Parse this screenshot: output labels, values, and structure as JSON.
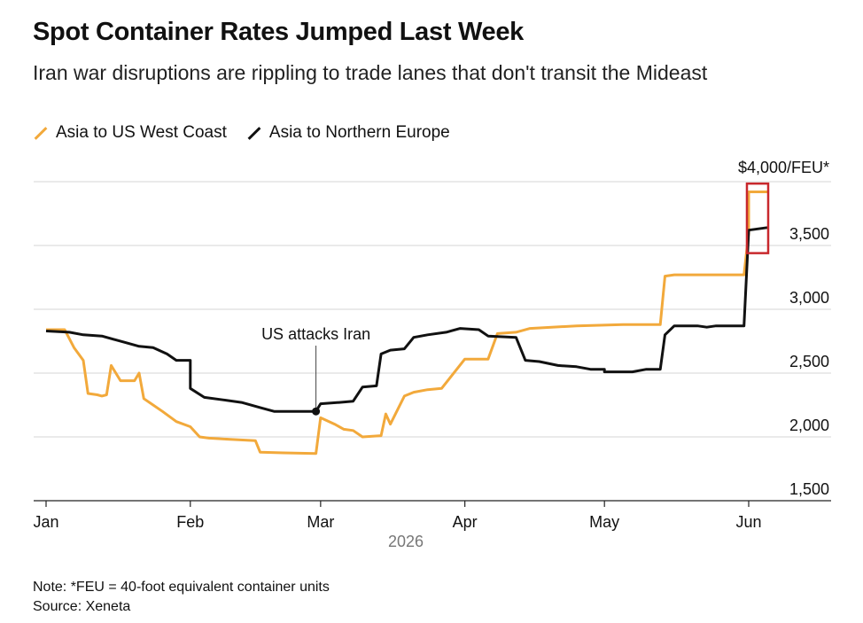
{
  "colors": {
    "asia_us_west_coast": "#f2a93b",
    "asia_northern_europe": "#111111",
    "highlight_box": "#c8282d",
    "grid": "#d6d6d6"
  },
  "header": {
    "title": "Spot Container Rates Jumped Last Week",
    "subtitle": "Iran war disruptions are rippling to trade lanes that don't transit the Mideast"
  },
  "footer": {
    "note": "Note: *FEU = 40-foot equivalent container units",
    "source": "Source: Xeneta"
  },
  "chart_data": {
    "type": "line",
    "xlabel": "2026",
    "ylabel": "",
    "x_ticks": [
      "Jan",
      "Feb",
      "Mar",
      "Apr",
      "May",
      "Jun"
    ],
    "x_tick_dates": [
      "2026-01-01",
      "2026-02-01",
      "2026-03-01",
      "2026-04-01",
      "2026-05-01",
      "2026-06-01"
    ],
    "xlim": [
      "2026-01-01",
      "2026-06-05"
    ],
    "ylim": [
      1500,
      4000
    ],
    "y_ticks": [
      1500,
      2000,
      2500,
      3000,
      3500,
      4000
    ],
    "y_tick_labels": [
      "1,500",
      "2,000",
      "2,500",
      "3,000",
      "3,500",
      "$4,000/FEU*"
    ],
    "grid": true,
    "legend_position": "top-left",
    "annotation": {
      "text": "US attacks Iran",
      "date": "2026-02-28",
      "value": 2200
    },
    "highlight": "latest values",
    "series": [
      {
        "name": "Asia to US West Coast",
        "points": [
          [
            "2026-01-01",
            2840
          ],
          [
            "2026-01-05",
            2840
          ],
          [
            "2026-01-07",
            2700
          ],
          [
            "2026-01-09",
            2600
          ],
          [
            "2026-01-10",
            2340
          ],
          [
            "2026-01-12",
            2330
          ],
          [
            "2026-01-13",
            2320
          ],
          [
            "2026-01-14",
            2330
          ],
          [
            "2026-01-15",
            2560
          ],
          [
            "2026-01-17",
            2440
          ],
          [
            "2026-01-20",
            2440
          ],
          [
            "2026-01-21",
            2500
          ],
          [
            "2026-01-22",
            2300
          ],
          [
            "2026-01-24",
            2250
          ],
          [
            "2026-01-26",
            2200
          ],
          [
            "2026-01-29",
            2120
          ],
          [
            "2026-02-01",
            2080
          ],
          [
            "2026-02-03",
            2000
          ],
          [
            "2026-02-05",
            1990
          ],
          [
            "2026-02-10",
            1980
          ],
          [
            "2026-02-15",
            1970
          ],
          [
            "2026-02-16",
            1880
          ],
          [
            "2026-02-21",
            1875
          ],
          [
            "2026-02-28",
            1870
          ],
          [
            "2026-03-01",
            2150
          ],
          [
            "2026-03-04",
            2100
          ],
          [
            "2026-03-06",
            2060
          ],
          [
            "2026-03-08",
            2050
          ],
          [
            "2026-03-10",
            2000
          ],
          [
            "2026-03-14",
            2010
          ],
          [
            "2026-03-15",
            2180
          ],
          [
            "2026-03-16",
            2100
          ],
          [
            "2026-03-19",
            2320
          ],
          [
            "2026-03-21",
            2350
          ],
          [
            "2026-03-24",
            2370
          ],
          [
            "2026-03-27",
            2380
          ],
          [
            "2026-04-01",
            2610
          ],
          [
            "2026-04-06",
            2610
          ],
          [
            "2026-04-08",
            2810
          ],
          [
            "2026-04-12",
            2820
          ],
          [
            "2026-04-15",
            2850
          ],
          [
            "2026-04-25",
            2870
          ],
          [
            "2026-05-05",
            2880
          ],
          [
            "2026-05-13",
            2880
          ],
          [
            "2026-05-14",
            3260
          ],
          [
            "2026-05-16",
            3270
          ],
          [
            "2026-05-31",
            3270
          ],
          [
            "2026-06-01",
            3600
          ],
          [
            "2026-06-01",
            3920
          ],
          [
            "2026-06-05",
            3920
          ]
        ]
      },
      {
        "name": "Asia to Northern Europe",
        "points": [
          [
            "2026-01-01",
            2830
          ],
          [
            "2026-01-06",
            2820
          ],
          [
            "2026-01-09",
            2800
          ],
          [
            "2026-01-13",
            2790
          ],
          [
            "2026-01-16",
            2760
          ],
          [
            "2026-01-18",
            2740
          ],
          [
            "2026-01-21",
            2710
          ],
          [
            "2026-01-24",
            2700
          ],
          [
            "2026-01-27",
            2650
          ],
          [
            "2026-01-29",
            2600
          ],
          [
            "2026-02-01",
            2600
          ],
          [
            "2026-02-01",
            2380
          ],
          [
            "2026-02-04",
            2310
          ],
          [
            "2026-02-08",
            2290
          ],
          [
            "2026-02-12",
            2270
          ],
          [
            "2026-02-16",
            2230
          ],
          [
            "2026-02-19",
            2200
          ],
          [
            "2026-02-25",
            2200
          ],
          [
            "2026-02-28",
            2200
          ],
          [
            "2026-03-01",
            2260
          ],
          [
            "2026-03-05",
            2270
          ],
          [
            "2026-03-08",
            2280
          ],
          [
            "2026-03-10",
            2390
          ],
          [
            "2026-03-13",
            2400
          ],
          [
            "2026-03-14",
            2650
          ],
          [
            "2026-03-16",
            2680
          ],
          [
            "2026-03-19",
            2690
          ],
          [
            "2026-03-21",
            2780
          ],
          [
            "2026-03-24",
            2800
          ],
          [
            "2026-03-28",
            2820
          ],
          [
            "2026-03-31",
            2850
          ],
          [
            "2026-04-04",
            2840
          ],
          [
            "2026-04-06",
            2790
          ],
          [
            "2026-04-12",
            2780
          ],
          [
            "2026-04-14",
            2600
          ],
          [
            "2026-04-17",
            2590
          ],
          [
            "2026-04-21",
            2560
          ],
          [
            "2026-04-25",
            2550
          ],
          [
            "2026-04-28",
            2530
          ],
          [
            "2026-05-01",
            2530
          ],
          [
            "2026-05-01",
            2510
          ],
          [
            "2026-05-07",
            2510
          ],
          [
            "2026-05-10",
            2530
          ],
          [
            "2026-05-13",
            2530
          ],
          [
            "2026-05-14",
            2800
          ],
          [
            "2026-05-16",
            2870
          ],
          [
            "2026-05-21",
            2870
          ],
          [
            "2026-05-23",
            2860
          ],
          [
            "2026-05-25",
            2870
          ],
          [
            "2026-05-31",
            2870
          ],
          [
            "2026-06-01",
            3620
          ],
          [
            "2026-06-05",
            3640
          ]
        ]
      }
    ]
  }
}
